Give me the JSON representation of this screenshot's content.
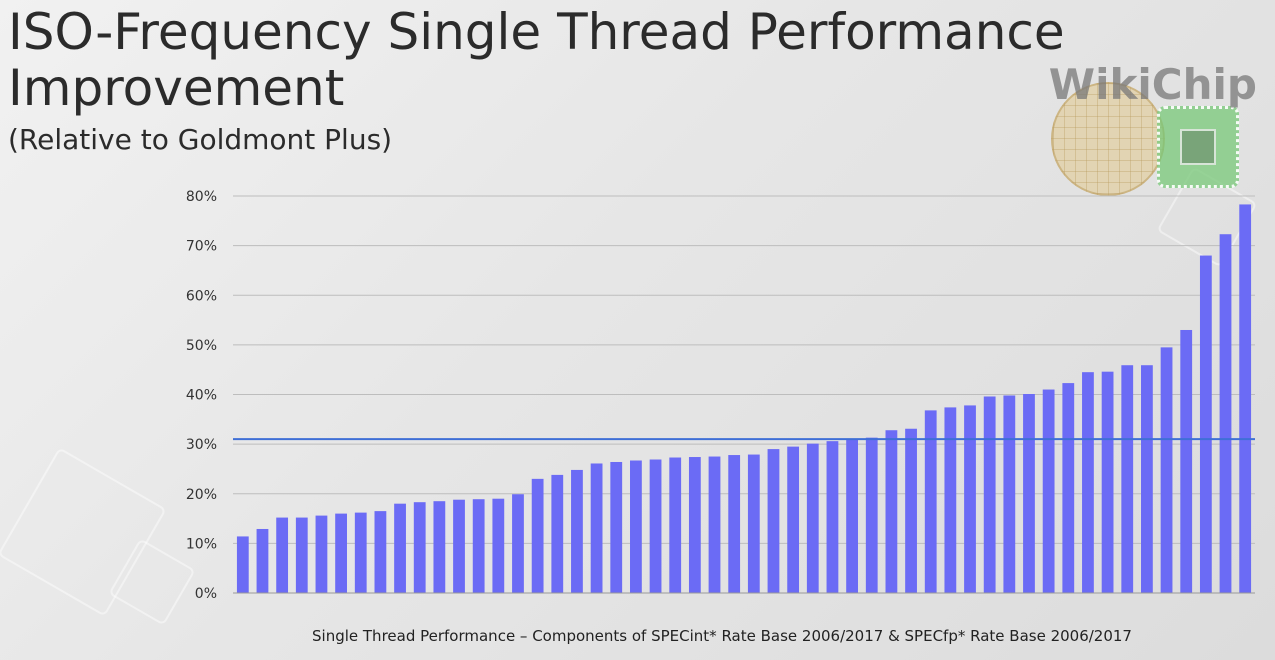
{
  "title": "ISO-Frequency Single Thread Performance Improvement",
  "subtitle": "(Relative to Goldmont Plus)",
  "logo_text": "WikiChip",
  "chart_data": {
    "type": "bar",
    "xlabel": "Single Thread Performance – Components of SPECint* Rate Base 2006/2017 & SPECfp* Rate Base 2006/2017",
    "ylabel": "",
    "ylim": [
      0,
      80
    ],
    "yticks": [
      0,
      10,
      20,
      30,
      40,
      50,
      60,
      70,
      80
    ],
    "ytick_labels": [
      "0%",
      "10%",
      "20%",
      "30%",
      "40%",
      "50%",
      "60%",
      "70%",
      "80%"
    ],
    "grid": true,
    "reference_line": 31,
    "bar_color": "#6b6bf5",
    "reference_color": "#3f6fd6",
    "values": [
      11.4,
      12.9,
      15.2,
      15.2,
      15.6,
      16.0,
      16.2,
      16.5,
      18.0,
      18.3,
      18.5,
      18.8,
      18.9,
      19.0,
      19.9,
      23.0,
      23.8,
      24.8,
      26.1,
      26.4,
      26.7,
      26.9,
      27.3,
      27.4,
      27.5,
      27.8,
      27.9,
      29.0,
      29.5,
      30.1,
      30.6,
      31.0,
      31.3,
      32.8,
      33.1,
      36.8,
      37.4,
      37.8,
      39.6,
      39.8,
      40.1,
      41.0,
      42.3,
      44.5,
      44.6,
      45.9,
      45.9,
      49.5,
      53.0,
      68.0,
      72.3,
      78.3
    ]
  }
}
